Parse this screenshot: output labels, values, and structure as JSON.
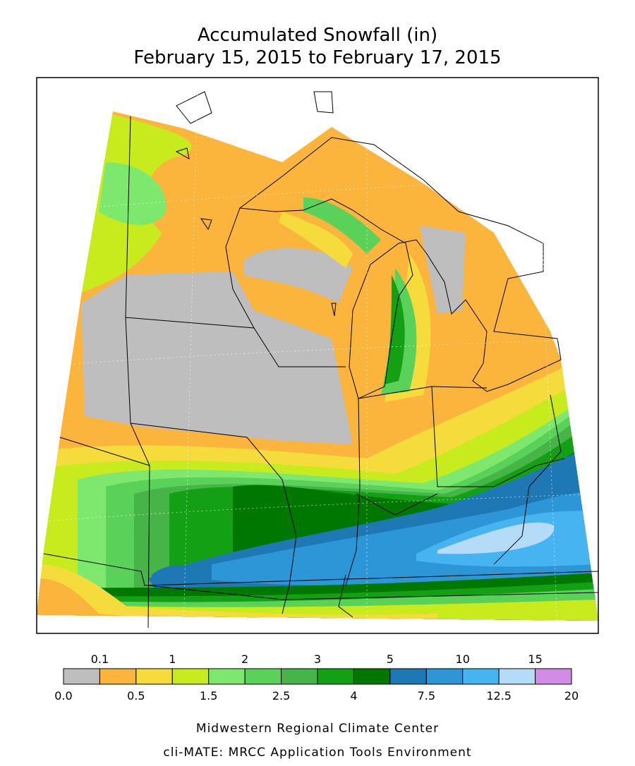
{
  "header": {
    "title": "Accumulated Snowfall (in)",
    "subtitle": "February 15, 2015 to February 17, 2015"
  },
  "legend": {
    "bounds": [
      {
        "value": 0,
        "label": "0.0"
      },
      0.1,
      0.5,
      1,
      1.5,
      2,
      2.5,
      3,
      4,
      5,
      7.5,
      10,
      12.5,
      15,
      20
    ],
    "colors": [
      "#bebebe",
      "#fbb43c",
      "#f5dc3c",
      "#c8eb1e",
      "#7ee86e",
      "#5ad25a",
      "#46b446",
      "#14a014",
      "#007800",
      "#1e78b4",
      "#2d96d7",
      "#46b4f0",
      "#b4dcf8",
      "#d28ce6"
    ]
  },
  "credits": [
    "Midwestern Regional Climate Center",
    "cli-MATE: MRCC Application Tools Environment"
  ]
}
